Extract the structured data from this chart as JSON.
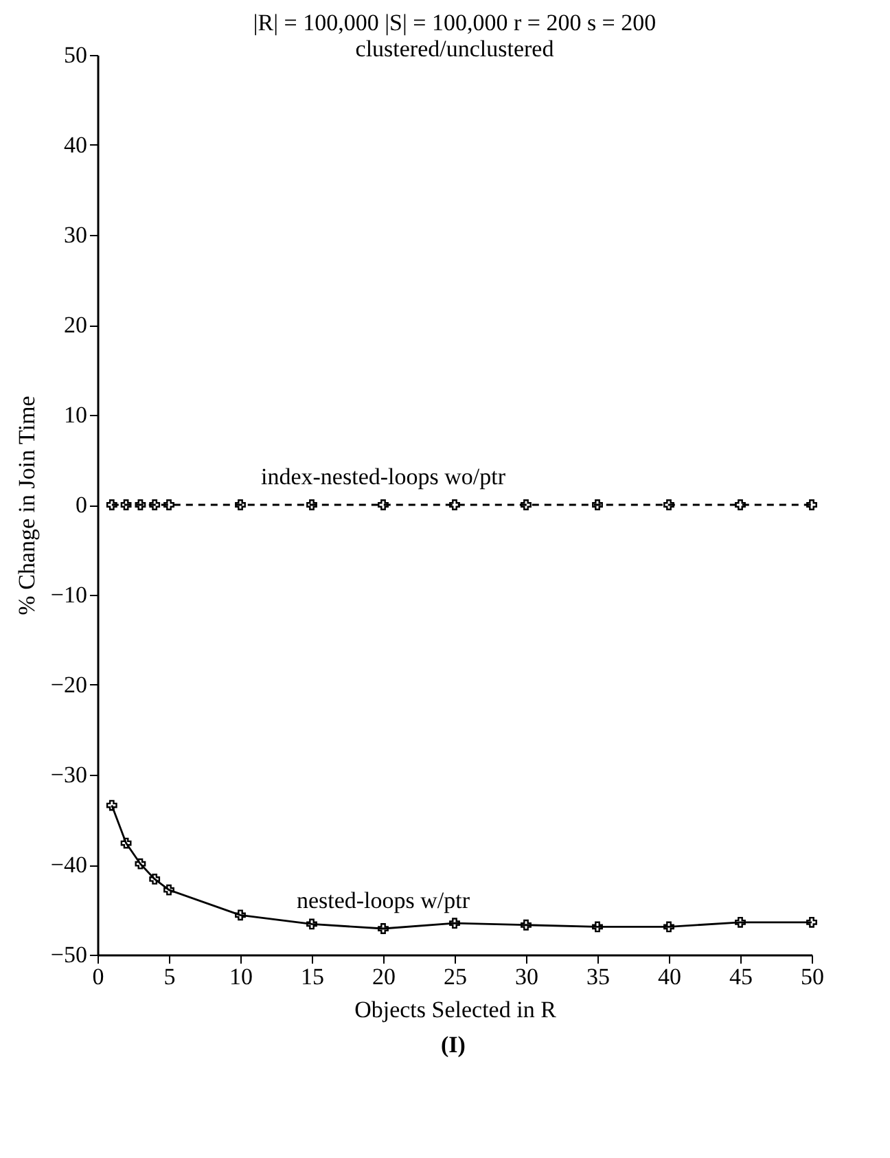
{
  "chart_data": {
    "type": "line",
    "title": "|R| = 100,000  |S| = 100,000  r = 200  s = 200",
    "subtitle": "clustered/unclustered",
    "xlabel": "Objects Selected in R",
    "ylabel": "% Change in Join Time",
    "x": [
      1,
      2,
      3,
      4,
      5,
      10,
      15,
      20,
      25,
      30,
      35,
      40,
      45,
      50
    ],
    "series": [
      {
        "name": "index-nested-loops wo/ptr",
        "color": "#000000",
        "line_style": "dashed",
        "values": [
          0,
          0,
          0,
          0,
          0,
          0,
          0,
          0,
          0,
          0,
          0,
          0,
          0,
          0
        ]
      },
      {
        "name": "nested-loops w/ptr",
        "color": "#000000",
        "line_style": "solid",
        "values": [
          -33.4,
          -37.6,
          -39.9,
          -41.6,
          -42.8,
          -45.6,
          -46.6,
          -47.1,
          -46.5,
          -46.7,
          -46.9,
          -46.9,
          -46.4,
          -46.4
        ]
      }
    ],
    "xlim": [
      0,
      50
    ],
    "xticks": [
      0,
      5,
      10,
      15,
      20,
      25,
      30,
      35,
      40,
      45,
      50
    ],
    "ylim": [
      -50,
      50
    ],
    "yticks": [
      -50,
      -40,
      -30,
      -20,
      -10,
      0,
      10,
      20,
      30,
      40,
      50
    ],
    "marker": "cross",
    "grid": false,
    "annotations": [
      "(I)"
    ]
  }
}
